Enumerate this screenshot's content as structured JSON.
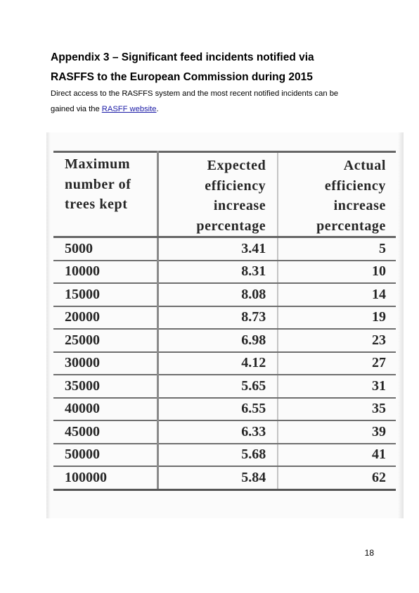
{
  "heading": {
    "line1": "Appendix 3 – Significant feed incidents notified via",
    "line2": "RASFFS to the European Commission during 2015"
  },
  "intro": {
    "line1": "Direct access to the RASFFS system and the most recent notified incidents can be",
    "prefix": "gained via the ",
    "link_text": "RASFF website",
    "suffix": "."
  },
  "table": {
    "header": {
      "col1": [
        "Maximum",
        "number of",
        "trees kept"
      ],
      "col2": [
        "Expected",
        "efficiency",
        "increase",
        "percentage"
      ],
      "col3": [
        "Actual",
        "efficiency",
        "increase",
        "percentage"
      ]
    },
    "rows": [
      {
        "trees": "5000",
        "expected": "3.41",
        "actual": "5"
      },
      {
        "trees": "10000",
        "expected": "8.31",
        "actual": "10"
      },
      {
        "trees": "15000",
        "expected": "8.08",
        "actual": "14"
      },
      {
        "trees": "20000",
        "expected": "8.73",
        "actual": "19"
      },
      {
        "trees": "25000",
        "expected": "6.98",
        "actual": "23"
      },
      {
        "trees": "30000",
        "expected": "4.12",
        "actual": "27"
      },
      {
        "trees": "35000",
        "expected": "5.65",
        "actual": "31"
      },
      {
        "trees": "40000",
        "expected": "6.55",
        "actual": "35"
      },
      {
        "trees": "45000",
        "expected": "6.33",
        "actual": "39"
      },
      {
        "trees": "50000",
        "expected": "5.68",
        "actual": "41"
      },
      {
        "trees": "100000",
        "expected": "5.84",
        "actual": "62"
      }
    ]
  },
  "page_number": "18"
}
